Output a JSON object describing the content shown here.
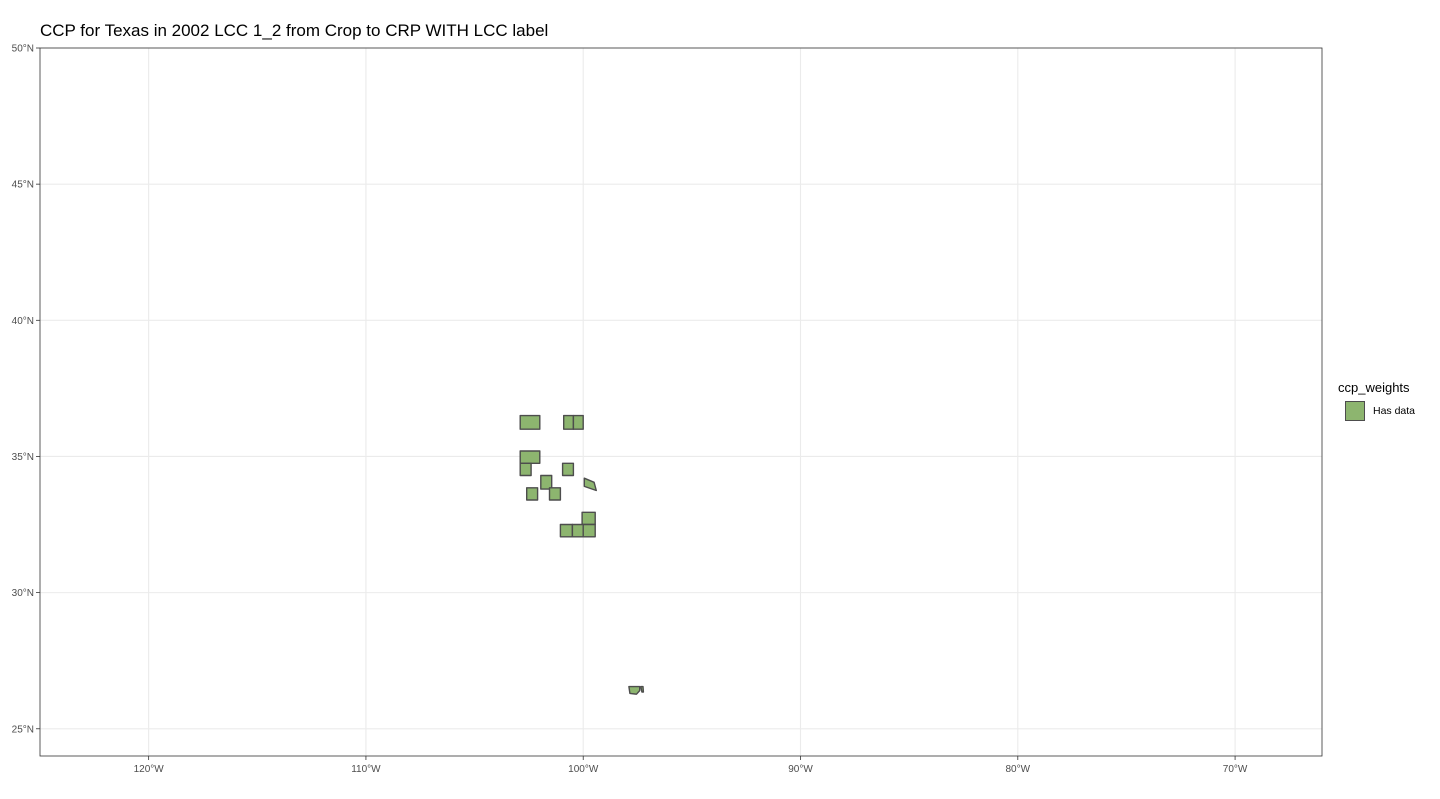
{
  "title": "CCP for Texas in 2002 LCC 1_2 from Crop to CRP WITH LCC label",
  "chart_data": {
    "type": "map",
    "xlim": [
      -125,
      -66
    ],
    "ylim": [
      24,
      50
    ],
    "x_ticks": [
      {
        "value": -120,
        "label": "120°W"
      },
      {
        "value": -110,
        "label": "110°W"
      },
      {
        "value": -100,
        "label": "100°W"
      },
      {
        "value": -90,
        "label": "90°W"
      },
      {
        "value": -80,
        "label": "80°W"
      },
      {
        "value": -70,
        "label": "70°W"
      }
    ],
    "y_ticks": [
      {
        "value": 25,
        "label": "25°N"
      },
      {
        "value": 30,
        "label": "30°N"
      },
      {
        "value": 35,
        "label": "35°N"
      },
      {
        "value": 40,
        "label": "40°N"
      },
      {
        "value": 45,
        "label": "45°N"
      },
      {
        "value": 50,
        "label": "50°N"
      }
    ],
    "grid": true,
    "fill_color": "#8db56f",
    "stroke_color": "#4d4d4d",
    "counties": [
      [
        [
          -102.9,
          36.0
        ],
        [
          -102.0,
          36.0
        ],
        [
          -102.0,
          36.5
        ],
        [
          -102.9,
          36.5
        ]
      ],
      [
        [
          -100.9,
          36.0
        ],
        [
          -100.45,
          36.0
        ],
        [
          -100.45,
          36.5
        ],
        [
          -100.9,
          36.5
        ]
      ],
      [
        [
          -100.45,
          36.0
        ],
        [
          -100.0,
          36.0
        ],
        [
          -100.0,
          36.5
        ],
        [
          -100.45,
          36.5
        ]
      ],
      [
        [
          -102.9,
          34.75
        ],
        [
          -102.0,
          34.75
        ],
        [
          -102.0,
          35.2
        ],
        [
          -102.9,
          35.2
        ]
      ],
      [
        [
          -102.9,
          34.3
        ],
        [
          -102.4,
          34.3
        ],
        [
          -102.4,
          34.75
        ],
        [
          -102.9,
          34.75
        ]
      ],
      [
        [
          -100.95,
          34.3
        ],
        [
          -100.45,
          34.3
        ],
        [
          -100.45,
          34.75
        ],
        [
          -100.95,
          34.75
        ]
      ],
      [
        [
          -101.95,
          33.8
        ],
        [
          -101.45,
          33.8
        ],
        [
          -101.45,
          34.3
        ],
        [
          -101.95,
          34.3
        ]
      ],
      [
        [
          -102.6,
          33.4
        ],
        [
          -102.1,
          33.4
        ],
        [
          -102.1,
          33.85
        ],
        [
          -102.6,
          33.85
        ]
      ],
      [
        [
          -101.55,
          33.4
        ],
        [
          -101.05,
          33.4
        ],
        [
          -101.05,
          33.85
        ],
        [
          -101.55,
          33.85
        ]
      ],
      [
        [
          -99.95,
          34.2
        ],
        [
          -99.5,
          34.05
        ],
        [
          -99.4,
          33.75
        ],
        [
          -99.95,
          33.9
        ]
      ],
      [
        [
          -100.05,
          32.5
        ],
        [
          -99.45,
          32.5
        ],
        [
          -99.45,
          32.95
        ],
        [
          -100.05,
          32.95
        ]
      ],
      [
        [
          -101.05,
          32.05
        ],
        [
          -100.5,
          32.05
        ],
        [
          -100.5,
          32.5
        ],
        [
          -101.05,
          32.5
        ]
      ],
      [
        [
          -100.5,
          32.05
        ],
        [
          -100.0,
          32.05
        ],
        [
          -100.0,
          32.5
        ],
        [
          -100.5,
          32.5
        ]
      ],
      [
        [
          -100.0,
          32.05
        ],
        [
          -99.45,
          32.05
        ],
        [
          -99.45,
          32.5
        ],
        [
          -100.0,
          32.5
        ]
      ],
      [
        [
          -97.9,
          26.55
        ],
        [
          -97.4,
          26.55
        ],
        [
          -97.4,
          26.4
        ],
        [
          -97.55,
          26.27
        ],
        [
          -97.85,
          26.3
        ]
      ],
      [
        [
          -97.35,
          26.55
        ],
        [
          -97.25,
          26.55
        ],
        [
          -97.23,
          26.35
        ],
        [
          -97.3,
          26.35
        ]
      ]
    ]
  },
  "legend": {
    "title": "ccp_weights",
    "items": [
      {
        "label": "Has data",
        "color": "#8db56f"
      }
    ]
  }
}
